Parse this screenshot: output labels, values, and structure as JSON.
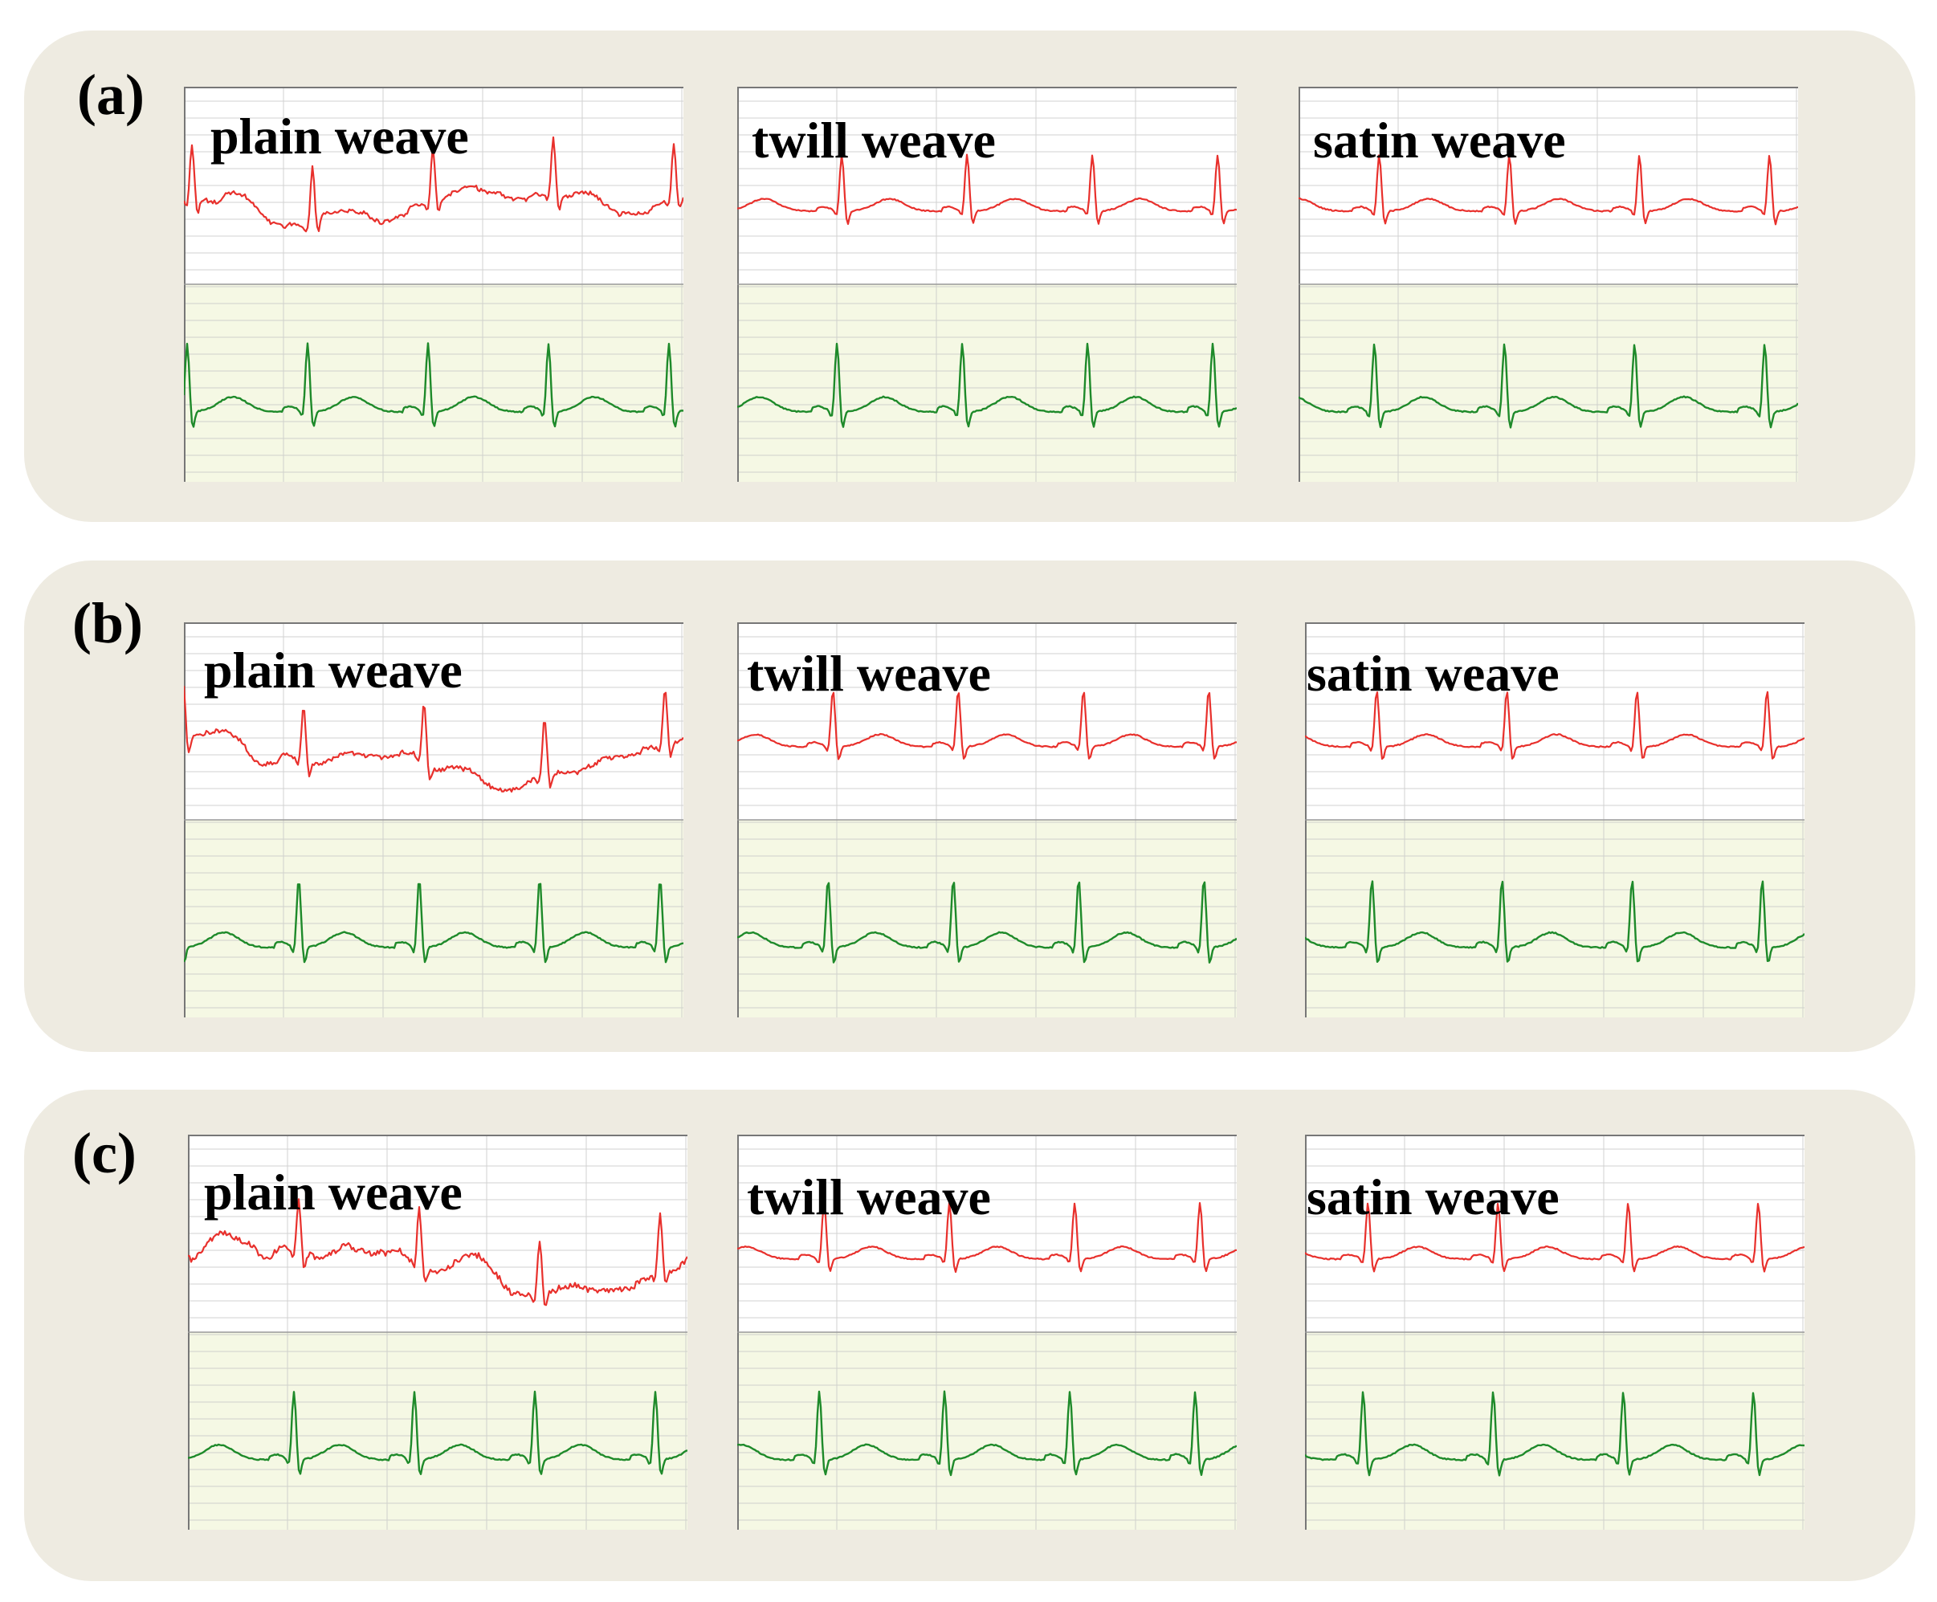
{
  "colors": {
    "panel_background": "#eeebe1",
    "trace_top": "#e8302c",
    "trace_bottom": "#1e8a2a",
    "strip_top_background": "#ffffff",
    "strip_bottom_background": "#f5f8e4",
    "grid_line": "#c4c4c4"
  },
  "panels": [
    {
      "label": "(a)",
      "boxes": [
        {
          "title": "plain weave",
          "trace_top": "noisy",
          "trace_bottom": "regular"
        },
        {
          "title": "twill weave",
          "trace_top": "regular",
          "trace_bottom": "regular"
        },
        {
          "title": "satin weave",
          "trace_top": "regular",
          "trace_bottom": "regular"
        }
      ]
    },
    {
      "label": "(b)",
      "boxes": [
        {
          "title": "plain weave",
          "trace_top": "noisy",
          "trace_bottom": "regular"
        },
        {
          "title": "twill weave",
          "trace_top": "regular",
          "trace_bottom": "regular"
        },
        {
          "title": "satin weave",
          "trace_top": "regular",
          "trace_bottom": "regular"
        }
      ]
    },
    {
      "label": "(c)",
      "boxes": [
        {
          "title": "plain weave",
          "trace_top": "motion-artifact",
          "trace_bottom": "regular"
        },
        {
          "title": "twill weave",
          "trace_top": "regular",
          "trace_bottom": "regular"
        },
        {
          "title": "satin weave",
          "trace_top": "regular",
          "trace_bottom": "regular"
        }
      ]
    }
  ]
}
